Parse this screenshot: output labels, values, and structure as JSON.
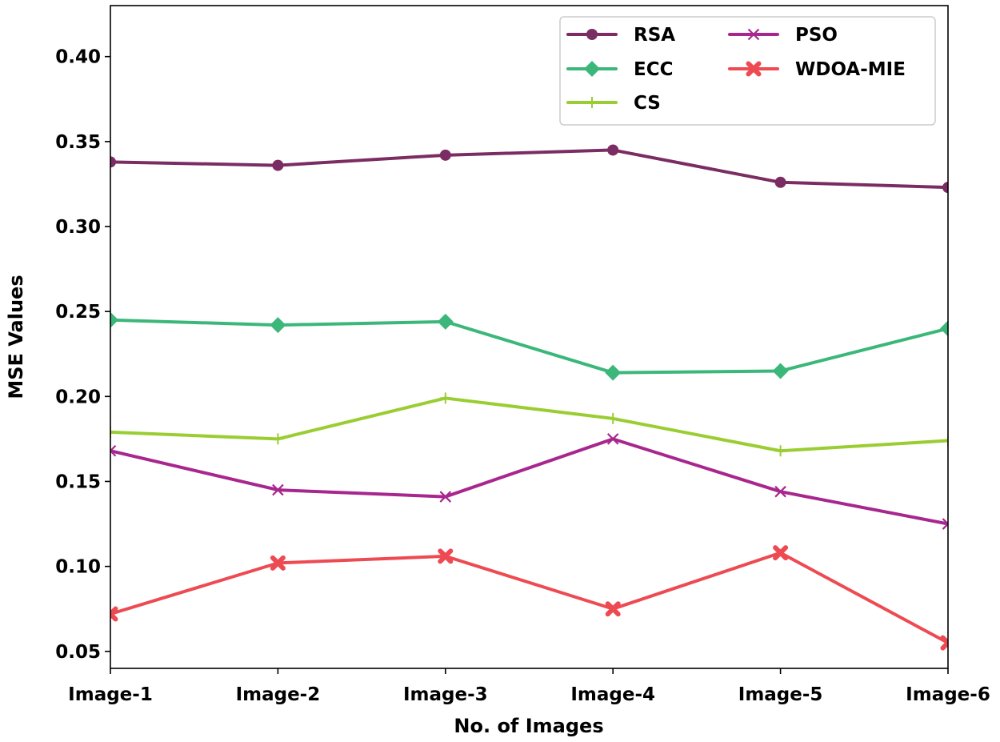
{
  "chart_data": {
    "type": "line",
    "title": "",
    "xlabel": "No. of Images",
    "ylabel": "MSE Values",
    "categories": [
      "Image-1",
      "Image-2",
      "Image-3",
      "Image-4",
      "Image-5",
      "Image-6"
    ],
    "ylim": [
      0.04,
      0.43
    ],
    "yticks": [
      "0.05",
      "0.10",
      "0.15",
      "0.20",
      "0.25",
      "0.30",
      "0.35",
      "0.40"
    ],
    "grid": false,
    "legend_position": "top-right",
    "series": [
      {
        "name": "RSA",
        "color": "#7b2d63",
        "marker": "circle",
        "values": [
          0.338,
          0.336,
          0.342,
          0.345,
          0.326,
          0.323
        ]
      },
      {
        "name": "ECC",
        "color": "#3bb77a",
        "marker": "diamond",
        "values": [
          0.245,
          0.242,
          0.244,
          0.214,
          0.215,
          0.24
        ]
      },
      {
        "name": "CS",
        "color": "#9acd32",
        "marker": "plus",
        "values": [
          0.179,
          0.175,
          0.199,
          0.187,
          0.168,
          0.174
        ]
      },
      {
        "name": "PSO",
        "color": "#a8278e",
        "marker": "x",
        "values": [
          0.168,
          0.145,
          0.141,
          0.175,
          0.144,
          0.125
        ]
      },
      {
        "name": "WDOA-MIE",
        "color": "#ee4a52",
        "marker": "x-filled",
        "values": [
          0.072,
          0.102,
          0.106,
          0.075,
          0.108,
          0.055
        ]
      }
    ]
  }
}
